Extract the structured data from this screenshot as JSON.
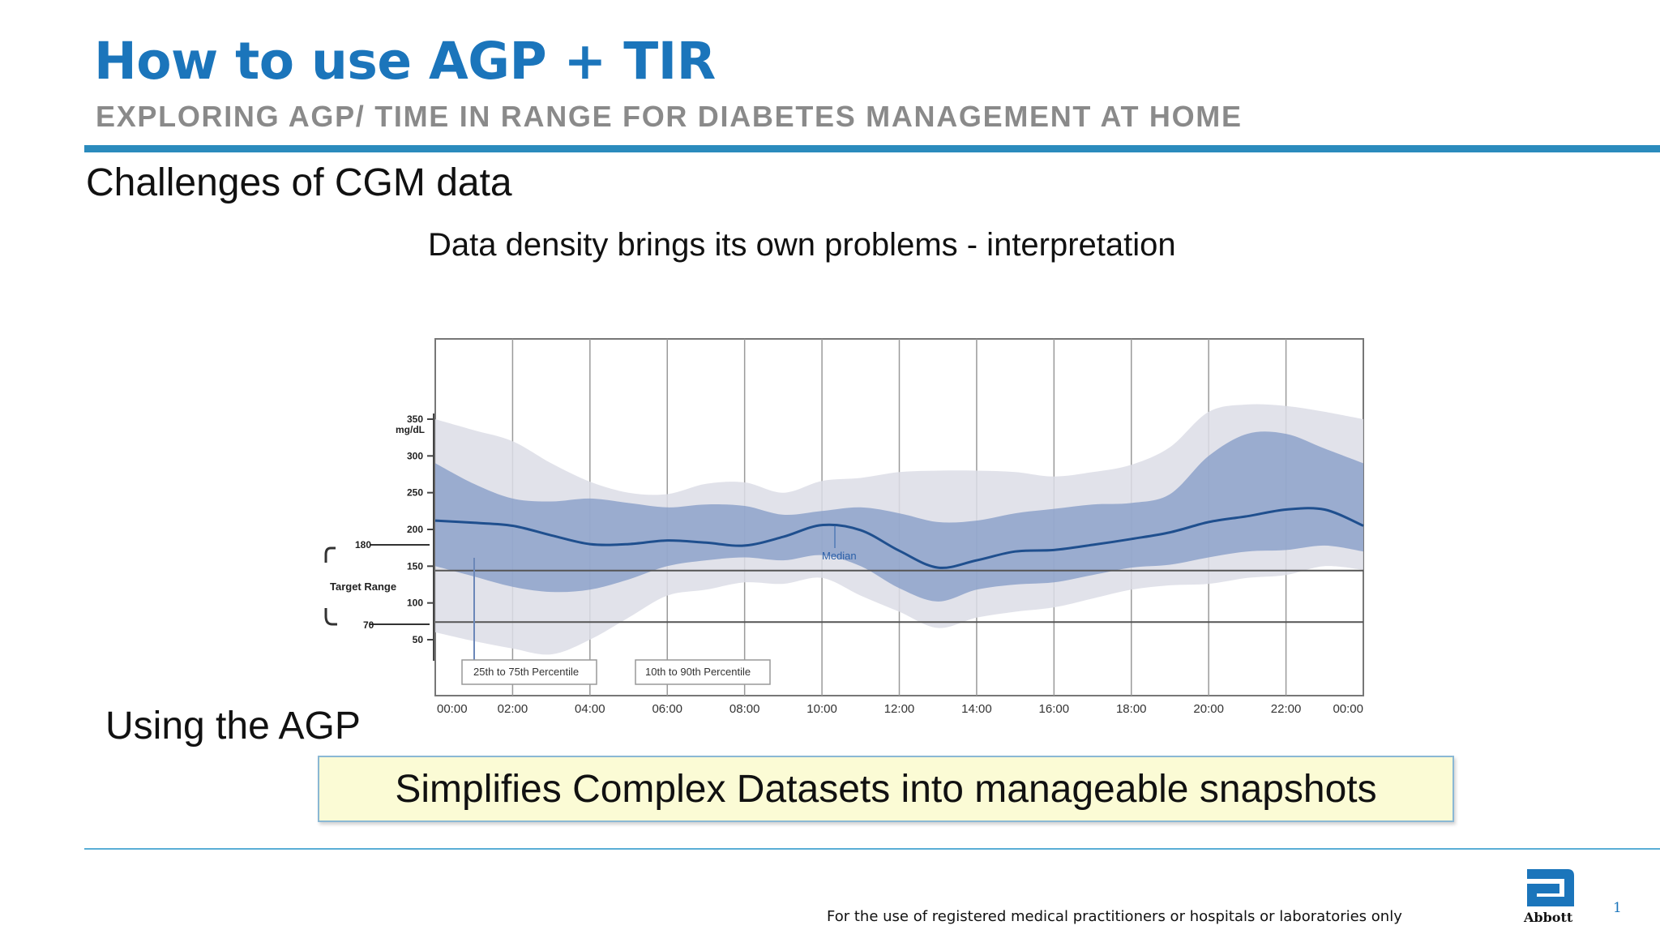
{
  "header": {
    "title": "How to use AGP + TIR",
    "subtitle": "EXPLORING AGP/ TIME IN RANGE FOR DIABETES MANAGEMENT AT HOME"
  },
  "slide": {
    "section_heading": "Challenges of CGM data",
    "caption": "Data density brings its own problems - interpretation",
    "agp_heading": "Using the AGP",
    "callout": "Simplifies Complex Datasets into manageable snapshots",
    "footer": "For the use of registered medical practitioners or hospitals or laboratories only",
    "page_number": "1",
    "logo_text": "Abbott"
  },
  "colors": {
    "title": "#1b75bb",
    "subtitle": "#8a8a8a",
    "rule": "#2b8bbd",
    "band_outer": "#dcdde6",
    "band_inner": "#7e97c5",
    "median": "#1f4f8e",
    "callout_bg": "#fbfbd5"
  },
  "chart_data": {
    "type": "area",
    "ylabel": "mg/dL",
    "y_ticks": [
      "350",
      "300",
      "250",
      "200",
      "150",
      "100",
      "50"
    ],
    "y_tick_values": [
      350,
      300,
      250,
      200,
      150,
      100,
      50
    ],
    "ylim": [
      25,
      340
    ],
    "target_range": {
      "label": "Target Range",
      "upper_label": "180",
      "lower_label": "70",
      "upper": 180,
      "lower": 70
    },
    "x_ticks": [
      "00:00",
      "02:00",
      "04:00",
      "06:00",
      "08:00",
      "10:00",
      "12:00",
      "14:00",
      "16:00",
      "18:00",
      "20:00",
      "22:00",
      "00:00"
    ],
    "x_hours": [
      0,
      1,
      2,
      3,
      4,
      5,
      6,
      7,
      8,
      9,
      10,
      11,
      12,
      13,
      14,
      15,
      16,
      17,
      18,
      19,
      20,
      21,
      22,
      23,
      24
    ],
    "series": [
      {
        "name": "Median",
        "values": [
          212,
          209,
          205,
          192,
          180,
          180,
          185,
          182,
          178,
          190,
          206,
          199,
          171,
          148,
          158,
          170,
          172,
          179,
          187,
          196,
          210,
          218,
          227,
          227,
          205
        ]
      },
      {
        "name": "25th to 75th Percentile",
        "lower": [
          150,
          136,
          122,
          115,
          118,
          132,
          150,
          158,
          162,
          158,
          165,
          150,
          120,
          102,
          118,
          125,
          128,
          138,
          148,
          152,
          162,
          170,
          172,
          178,
          170
        ],
        "upper": [
          290,
          262,
          242,
          238,
          242,
          236,
          230,
          234,
          232,
          220,
          225,
          230,
          222,
          210,
          212,
          222,
          228,
          234,
          236,
          248,
          300,
          330,
          330,
          310,
          290
        ]
      },
      {
        "name": "10th to 90th Percentile",
        "lower": [
          60,
          48,
          38,
          30,
          50,
          80,
          110,
          118,
          128,
          126,
          134,
          110,
          88,
          66,
          80,
          88,
          94,
          106,
          118,
          124,
          126,
          134,
          138,
          150,
          145
        ],
        "upper": [
          350,
          335,
          320,
          290,
          265,
          250,
          248,
          262,
          264,
          250,
          266,
          270,
          278,
          280,
          280,
          278,
          272,
          278,
          288,
          312,
          360,
          370,
          368,
          360,
          350
        ]
      }
    ],
    "annotations": [
      "Median"
    ],
    "legend": [
      "25th to 75th Percentile",
      "10th to 90th Percentile"
    ],
    "legend_position": "bottom-left",
    "grid": true
  }
}
